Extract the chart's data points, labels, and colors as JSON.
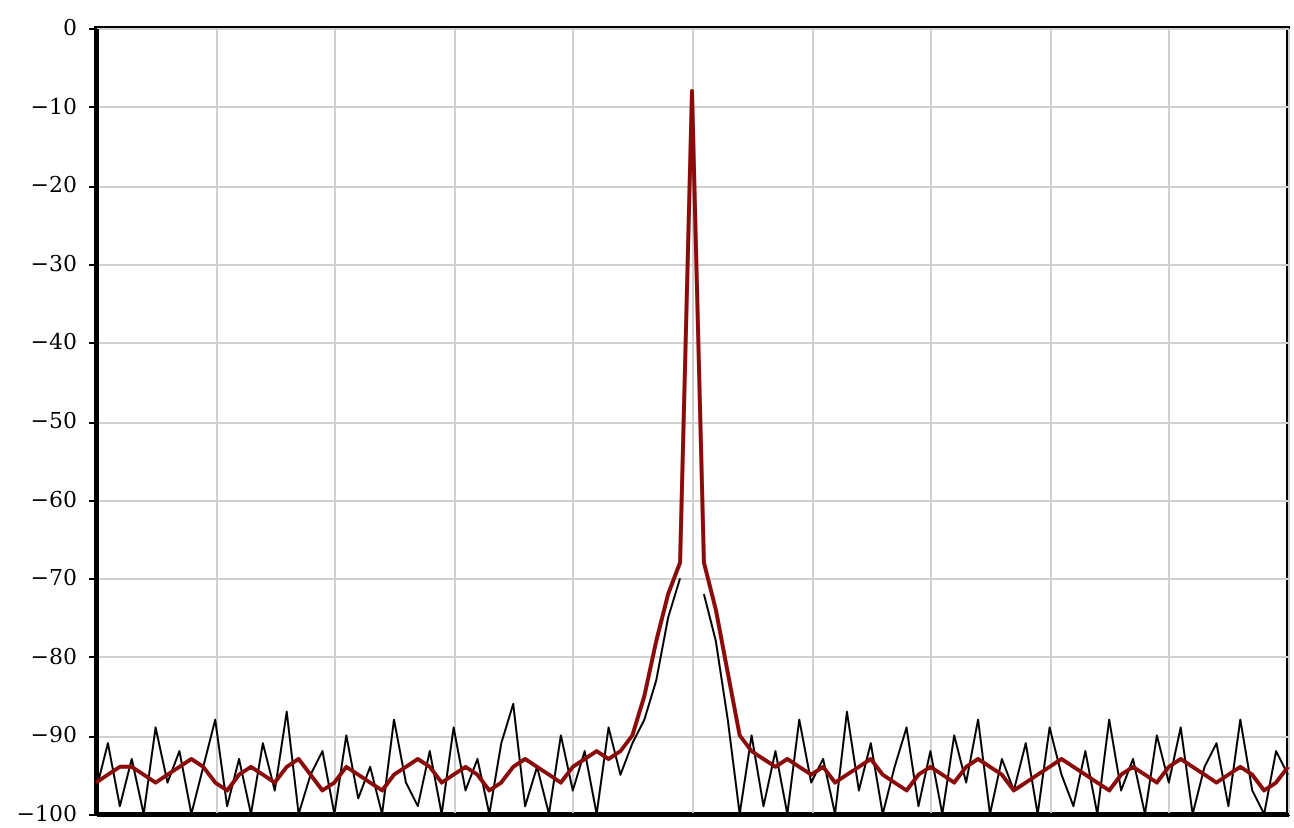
{
  "chart_data": {
    "type": "line",
    "categories": [
      null,
      null,
      null,
      null,
      null,
      null,
      null,
      null,
      null,
      null,
      null,
      null,
      null,
      null,
      null,
      null,
      null,
      null,
      null,
      null,
      null,
      null,
      null,
      null,
      null,
      null,
      null,
      null,
      null,
      null,
      null,
      null,
      null,
      null,
      null,
      null,
      null,
      null,
      null,
      null,
      null,
      null,
      null,
      null,
      null,
      null,
      null,
      null,
      null,
      null,
      null,
      null,
      null,
      null,
      null,
      null,
      null,
      null,
      null,
      null,
      null,
      null,
      null,
      null,
      null,
      null,
      null,
      null,
      null,
      null,
      null,
      null,
      null,
      null,
      null,
      null,
      null,
      null,
      null,
      null,
      null,
      null,
      null,
      null,
      null,
      null,
      null,
      null,
      null,
      null,
      null,
      null,
      null,
      null,
      null,
      null,
      null,
      null,
      null,
      null,
      null
    ],
    "series": [
      {
        "color": "#000000",
        "values": [
          -97,
          -91,
          -99,
          -93,
          -100,
          -89,
          -96,
          -92,
          -100,
          -94,
          -88,
          -99,
          -93,
          -100,
          -91,
          -97,
          -87,
          -100,
          -95,
          -92,
          -100,
          -90,
          -98,
          -94,
          -100,
          -88,
          -96,
          -99,
          -92,
          -100,
          -89,
          -97,
          -93,
          -100,
          -91,
          -86,
          -99,
          -94,
          -100,
          -90,
          -97,
          -92,
          -100,
          -89,
          -95,
          -91,
          -88,
          -83,
          -75,
          -70,
          null,
          -72,
          -78,
          -88,
          -100,
          -90,
          -99,
          -92,
          -100,
          -88,
          -96,
          -93,
          -100,
          -87,
          -97,
          -91,
          -100,
          -94,
          -89,
          -99,
          -92,
          -100,
          -90,
          -96,
          -88,
          -100,
          -93,
          -97,
          -91,
          -100,
          -89,
          -95,
          -99,
          -92,
          -100,
          -88,
          -97,
          -93,
          -100,
          -90,
          -96,
          -89,
          -100,
          -94,
          -91,
          -99,
          -88,
          -97,
          -100,
          -92,
          -95
        ]
      },
      {
        "color": "#8b0a0a",
        "values": [
          -96,
          -95,
          -94,
          -94,
          -95,
          -96,
          -95,
          -94,
          -93,
          -94,
          -96,
          -97,
          -95,
          -94,
          -95,
          -96,
          -94,
          -93,
          -95,
          -97,
          -96,
          -94,
          -95,
          -96,
          -97,
          -95,
          -94,
          -93,
          -94,
          -96,
          -95,
          -94,
          -95,
          -97,
          -96,
          -94,
          -93,
          -94,
          -95,
          -96,
          -94,
          -93,
          -92,
          -93,
          -92,
          -90,
          -85,
          -78,
          -72,
          -68,
          -8,
          -68,
          -74,
          -82,
          -90,
          -92,
          -93,
          -94,
          -93,
          -94,
          -95,
          -94,
          -96,
          -95,
          -94,
          -93,
          -95,
          -96,
          -97,
          -95,
          -94,
          -95,
          -96,
          -94,
          -93,
          -94,
          -95,
          -97,
          -96,
          -95,
          -94,
          -93,
          -94,
          -95,
          -96,
          -97,
          -95,
          -94,
          -95,
          -96,
          -94,
          -93,
          -94,
          -95,
          -96,
          -95,
          -94,
          -95,
          -97,
          -96,
          -94
        ]
      }
    ],
    "ylim": [
      -100,
      0
    ],
    "yticks": [
      0,
      -10,
      -20,
      -30,
      -40,
      -50,
      -60,
      -70,
      -80,
      -90,
      -100
    ],
    "grid": true
  }
}
